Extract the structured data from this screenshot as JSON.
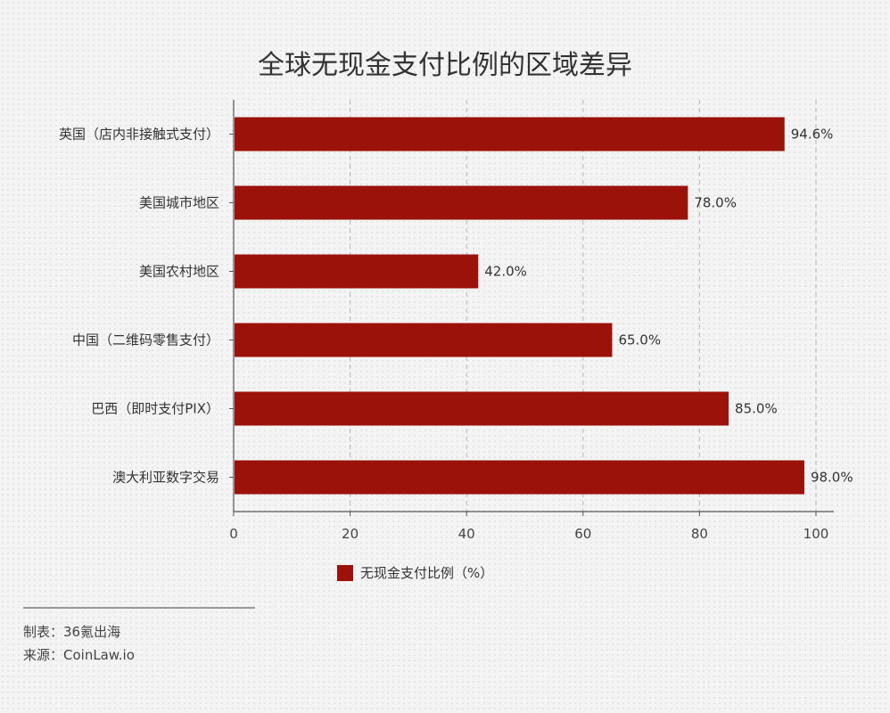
{
  "chart_data": {
    "type": "bar",
    "orientation": "horizontal",
    "title": "全球无现金支付比例的区域差异",
    "categories": [
      "英国（店内非接触式支付）",
      "美国城市地区",
      "美国农村地区",
      "中国（二维码零售支付）",
      "巴西（即时支付PIX）",
      "澳大利亚数字交易"
    ],
    "series": [
      {
        "name": "无现金支付比例（%）",
        "values": [
          94.6,
          78.0,
          42.0,
          65.0,
          85.0,
          98.0
        ]
      }
    ],
    "value_labels": [
      "94.6%",
      "78.0%",
      "42.0%",
      "65.0%",
      "85.0%",
      "98.0%"
    ],
    "xlim": [
      0,
      100
    ],
    "xticks": [
      0,
      20,
      40,
      60,
      80,
      100
    ],
    "xlabel": "",
    "ylabel": "",
    "grid": "vertical dashed",
    "legend_position": "bottom-center"
  },
  "colors": {
    "bar": "#9b120a",
    "grid": "#b5b5b5",
    "axis": "#555555"
  },
  "footer": {
    "maker": "制表：36氪出海",
    "source": "来源：CoinLaw.io"
  }
}
